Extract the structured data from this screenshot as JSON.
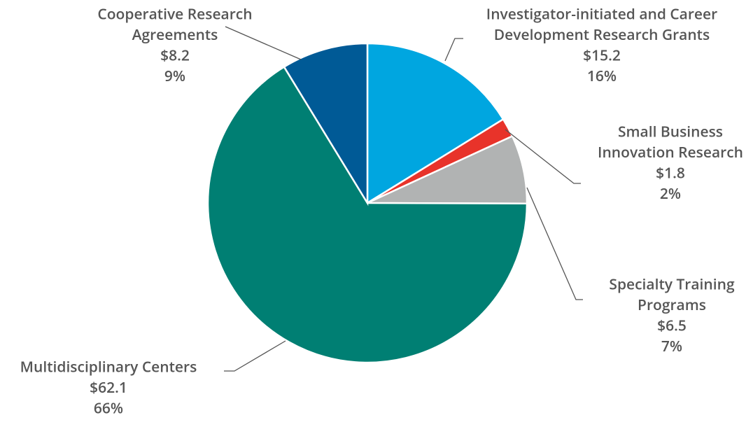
{
  "chart_data": {
    "type": "pie",
    "categories": [
      [
        "Investigator-initiated and Career",
        "Development Research Grants"
      ],
      [
        "Small Business",
        "Innovation Research"
      ],
      [
        "Specialty Training",
        "Programs"
      ],
      [
        "Multidisciplinary Centers"
      ],
      [
        "Cooperative Research",
        "Agreements"
      ]
    ],
    "values": [
      15.2,
      1.8,
      6.5,
      62.1,
      8.2
    ],
    "value_labels": [
      "$15.2",
      "$1.8",
      "$6.5",
      "$62.1",
      "$8.2"
    ],
    "percent_labels": [
      "16%",
      "2%",
      "7%",
      "66%",
      "9%"
    ],
    "colors": [
      "#00a6e0",
      "#e8332a",
      "#b1b3b3",
      "#007f73",
      "#005a96"
    ]
  }
}
